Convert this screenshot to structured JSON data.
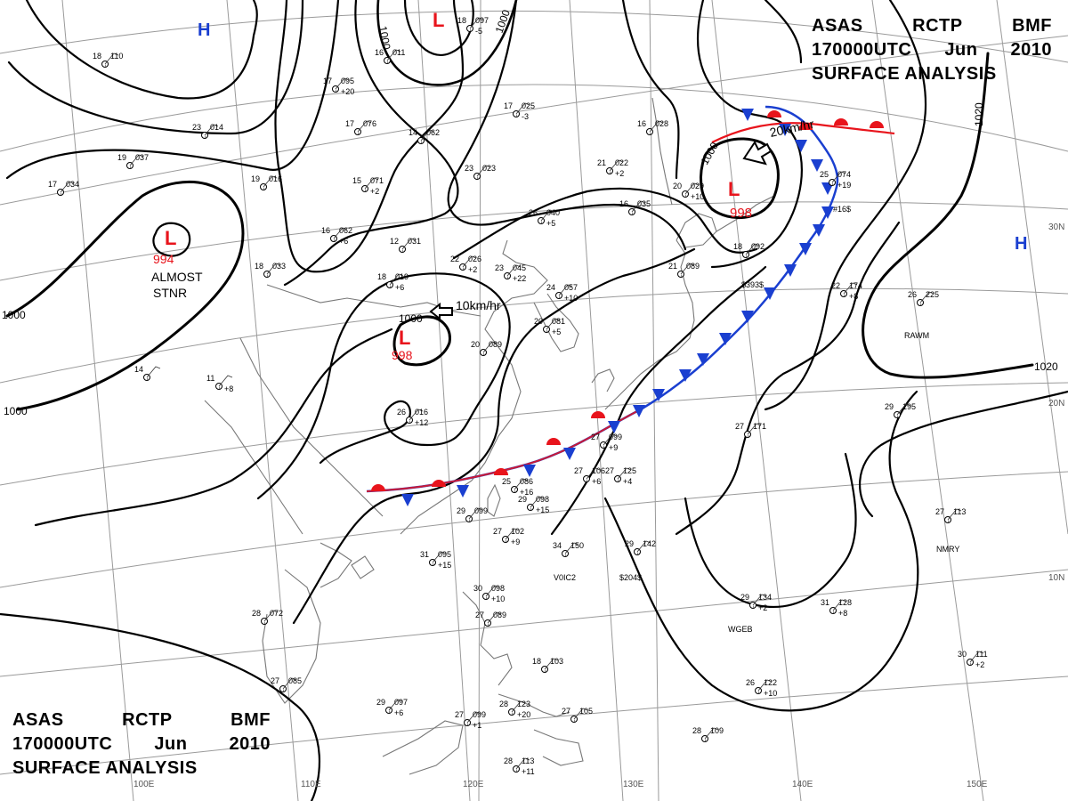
{
  "header": {
    "line1": [
      "ASAS",
      "RCTP",
      "BMF"
    ],
    "line2": [
      "170000UTC",
      "Jun",
      "2010"
    ],
    "line3": "SURFACE ANALYSIS"
  },
  "colors": {
    "low_marker": "#e8141c",
    "high_marker": "#1a3fd0",
    "cold_front": "#1a3fd0",
    "warm_front": "#e8141c",
    "isobar": "#000000",
    "grid": "#9a9a9a",
    "coast": "#777777"
  },
  "pressure_systems": [
    {
      "type": "L",
      "value": "998",
      "label_side": "east"
    },
    {
      "type": "L",
      "value": "994",
      "remark": "ALMOST STNR"
    },
    {
      "type": "L",
      "value": "998",
      "motion": "10km/hr"
    },
    {
      "type": "L",
      "value": "",
      "note": "top-center low"
    },
    {
      "type": "H",
      "value": ""
    },
    {
      "type": "H",
      "value": ""
    }
  ],
  "remarks": {
    "almost": "ALMOST",
    "stnr": "STNR"
  },
  "motions": {
    "east_low": "20km/hr",
    "china_low": "10km/hr"
  },
  "isobar_labels": {
    "a": "1000",
    "b": "1000",
    "c": "1000",
    "d": "1000",
    "e": "1000",
    "f": "1000",
    "g": "1020",
    "h": "1020",
    "i": "1000"
  },
  "lat_labels": [
    "30N",
    "20N",
    "10N"
  ],
  "lon_labels": [
    "100E",
    "110E",
    "120E",
    "130E",
    "140E",
    "150E"
  ],
  "stations": [
    {
      "id": "s01",
      "temp": "18",
      "press": "110"
    },
    {
      "id": "s02",
      "temp": "18",
      "press": "097",
      "tend": "-5"
    },
    {
      "id": "s03",
      "temp": "16",
      "press": "011"
    },
    {
      "id": "s04",
      "temp": "17",
      "press": "095",
      "tend": "+20"
    },
    {
      "id": "s05",
      "temp": "17",
      "press": "076"
    },
    {
      "id": "s06",
      "temp": "17",
      "press": "025",
      "tend": "-3"
    },
    {
      "id": "s07",
      "temp": "14",
      "press": "062"
    },
    {
      "id": "s08",
      "temp": "23",
      "press": "014"
    },
    {
      "id": "s09",
      "temp": "19",
      "press": "016"
    },
    {
      "id": "s10",
      "temp": "15",
      "press": "071",
      "tend": "+2"
    },
    {
      "id": "s11",
      "temp": "23",
      "press": "023"
    },
    {
      "id": "s12",
      "temp": "16",
      "press": "062",
      "tend": "+6"
    },
    {
      "id": "s13",
      "temp": "12",
      "press": "031"
    },
    {
      "id": "s14",
      "temp": "18",
      "press": "033"
    },
    {
      "id": "s15",
      "temp": "18",
      "press": "019",
      "tend": "+6"
    },
    {
      "id": "s16",
      "temp": "22",
      "press": "026",
      "tend": "+2"
    },
    {
      "id": "s17",
      "temp": "23",
      "press": "045",
      "tend": "+22"
    },
    {
      "id": "s18",
      "temp": "26",
      "press": "040",
      "tend": "+5"
    },
    {
      "id": "s19",
      "temp": "21",
      "press": "022",
      "tend": "+2"
    },
    {
      "id": "s20",
      "temp": "16",
      "press": "035"
    },
    {
      "id": "s21",
      "temp": "16",
      "press": "028"
    },
    {
      "id": "s22",
      "temp": "20",
      "press": "029",
      "tend": "+10"
    },
    {
      "id": "s23",
      "temp": "18",
      "press": "092"
    },
    {
      "id": "s24",
      "temp": "21",
      "press": "089"
    },
    {
      "id": "s25",
      "temp": "24",
      "press": "057",
      "tend": "+10"
    },
    {
      "id": "s26",
      "temp": "20",
      "press": "081",
      "tend": "+5"
    },
    {
      "id": "s27",
      "temp": "20",
      "press": "089"
    },
    {
      "id": "s28",
      "temp": "26",
      "press": "016",
      "tend": "+12"
    },
    {
      "id": "s29",
      "temp": "25",
      "press": "086",
      "tend": "+16"
    },
    {
      "id": "s30",
      "temp": "29",
      "press": "098",
      "tend": "+15"
    },
    {
      "id": "s31",
      "temp": "29",
      "press": "099"
    },
    {
      "id": "s32",
      "temp": "31",
      "press": "095",
      "tend": "+15"
    },
    {
      "id": "s33",
      "temp": "27",
      "press": "102",
      "tend": "+9"
    },
    {
      "id": "s34",
      "temp": "34",
      "press": "150"
    },
    {
      "id": "s35",
      "temp": "29",
      "press": "142"
    },
    {
      "id": "s36",
      "temp": "27",
      "press": "125",
      "tend": "+4"
    },
    {
      "id": "s37",
      "temp": "27",
      "press": "106",
      "tend": "+6"
    },
    {
      "id": "s38",
      "temp": "27",
      "press": "099",
      "tend": "+9"
    },
    {
      "id": "s39",
      "temp": "27",
      "press": "171"
    },
    {
      "id": "s40",
      "temp": "29",
      "press": "195"
    },
    {
      "id": "s41",
      "temp": "27",
      "press": "113"
    },
    {
      "id": "s42",
      "temp": "29",
      "press": "134",
      "tend": "+2"
    },
    {
      "id": "s43",
      "temp": "31",
      "press": "128",
      "tend": "+8"
    },
    {
      "id": "s44",
      "temp": "30",
      "press": "111",
      "tend": "+2"
    },
    {
      "id": "s45",
      "temp": "26",
      "press": "122",
      "tend": "+10"
    },
    {
      "id": "s46",
      "temp": "28",
      "press": "109"
    },
    {
      "id": "s47",
      "temp": "30",
      "press": "098",
      "tend": "+10"
    },
    {
      "id": "s48",
      "temp": "27",
      "press": "089"
    },
    {
      "id": "s49",
      "temp": "29",
      "press": "097",
      "tend": "+6"
    },
    {
      "id": "s50",
      "temp": "27",
      "press": "099",
      "tend": "+1"
    },
    {
      "id": "s51",
      "temp": "28",
      "press": "123",
      "tend": "+20"
    },
    {
      "id": "s52",
      "temp": "27",
      "press": "105"
    },
    {
      "id": "s53",
      "temp": "28",
      "press": "113",
      "tend": "+11"
    },
    {
      "id": "s54",
      "temp": "28",
      "press": "072"
    },
    {
      "id": "s55",
      "temp": "27",
      "press": "085"
    },
    {
      "id": "s56",
      "temp": "11",
      "press": "",
      "tend": "+8"
    },
    {
      "id": "s57",
      "temp": "14",
      "press": ""
    },
    {
      "id": "s58",
      "temp": "17",
      "press": "034"
    },
    {
      "id": "s59",
      "temp": "19",
      "press": "037"
    },
    {
      "id": "s60",
      "temp": "22",
      "press": "174",
      "tend": "+8"
    },
    {
      "id": "s61",
      "temp": "26",
      "press": "225"
    },
    {
      "id": "s62",
      "temp": "25",
      "press": "074",
      "tend": "+19"
    },
    {
      "id": "s63",
      "temp": "18",
      "press": "103"
    }
  ],
  "ship_codes": [
    "RAWM",
    "NMRY",
    "WGEB",
    "V0IC2",
    "$204$",
    "$393$",
    "#16$"
  ]
}
